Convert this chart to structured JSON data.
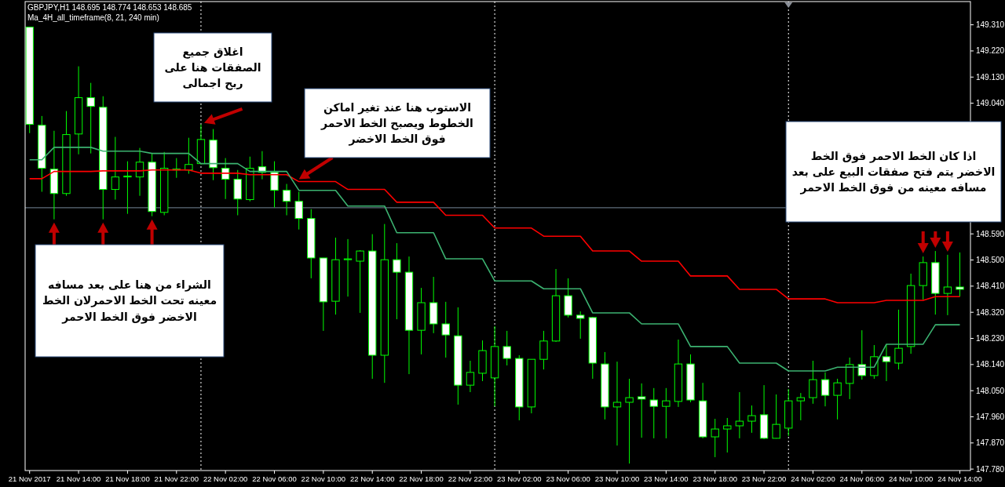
{
  "chart_data": {
    "type": "candlestick",
    "title": "GBPJPY,H1  148.695 148.774 148.653 148.685",
    "subtitle": "Ma_4H_all_timeframe(8, 21, 240 min)",
    "color": "#00ff00",
    "x": [
      "2017-11-21T10:00",
      "2017-11-21T11:00",
      "2017-11-21T12:00",
      "2017-11-21T13:00",
      "2017-11-21T14:00",
      "2017-11-21T15:00",
      "2017-11-21T16:00",
      "2017-11-21T17:00",
      "2017-11-21T18:00",
      "2017-11-21T19:00",
      "2017-11-21T20:00",
      "2017-11-21T21:00",
      "2017-11-21T22:00",
      "2017-11-21T23:00",
      "2017-11-22T00:00",
      "2017-11-22T01:00",
      "2017-11-22T02:00",
      "2017-11-22T03:00",
      "2017-11-22T04:00",
      "2017-11-22T05:00",
      "2017-11-22T06:00",
      "2017-11-22T07:00",
      "2017-11-22T08:00",
      "2017-11-22T09:00",
      "2017-11-22T10:00",
      "2017-11-22T11:00",
      "2017-11-22T12:00",
      "2017-11-22T13:00",
      "2017-11-22T14:00",
      "2017-11-22T15:00",
      "2017-11-22T16:00",
      "2017-11-22T17:00",
      "2017-11-22T18:00",
      "2017-11-22T19:00",
      "2017-11-22T20:00",
      "2017-11-22T21:00",
      "2017-11-22T22:00",
      "2017-11-22T23:00",
      "2017-11-23T00:00",
      "2017-11-23T01:00",
      "2017-11-23T02:00",
      "2017-11-23T03:00",
      "2017-11-23T04:00",
      "2017-11-23T05:00",
      "2017-11-23T06:00",
      "2017-11-23T07:00",
      "2017-11-23T08:00",
      "2017-11-23T09:00",
      "2017-11-23T10:00",
      "2017-11-23T11:00",
      "2017-11-23T12:00",
      "2017-11-23T13:00",
      "2017-11-23T14:00",
      "2017-11-23T15:00",
      "2017-11-23T16:00",
      "2017-11-23T17:00",
      "2017-11-23T18:00",
      "2017-11-23T19:00",
      "2017-11-23T20:00",
      "2017-11-23T21:00",
      "2017-11-23T22:00",
      "2017-11-23T23:00",
      "2017-11-24T00:00",
      "2017-11-24T01:00",
      "2017-11-24T02:00",
      "2017-11-24T03:00",
      "2017-11-24T04:00",
      "2017-11-24T05:00",
      "2017-11-24T06:00",
      "2017-11-24T07:00",
      "2017-11-24T08:00",
      "2017-11-24T09:00",
      "2017-11-24T10:00",
      "2017-11-24T11:00",
      "2017-11-24T12:00",
      "2017-11-24T13:00",
      "2017-11-24T14:00"
    ],
    "ohlc": [
      [
        149.302,
        149.302,
        148.937,
        148.967
      ],
      [
        148.964,
        148.996,
        148.735,
        148.816
      ],
      [
        148.813,
        148.945,
        148.64,
        148.729
      ],
      [
        148.729,
        149.013,
        148.721,
        148.932
      ],
      [
        148.934,
        149.167,
        148.864,
        149.059
      ],
      [
        149.059,
        149.11,
        148.867,
        149.029
      ],
      [
        149.026,
        149.064,
        148.64,
        148.743
      ],
      [
        148.743,
        148.924,
        148.708,
        148.786
      ],
      [
        148.786,
        148.84,
        148.659,
        148.789
      ],
      [
        148.786,
        148.886,
        148.721,
        148.837
      ],
      [
        148.837,
        148.867,
        148.651,
        148.667
      ],
      [
        148.664,
        148.872,
        148.654,
        148.816
      ],
      [
        148.81,
        148.851,
        148.783,
        148.813
      ],
      [
        148.81,
        148.921,
        148.797,
        148.829
      ],
      [
        148.832,
        148.967,
        148.829,
        148.915
      ],
      [
        148.913,
        148.951,
        148.775,
        148.818
      ],
      [
        148.816,
        148.851,
        148.71,
        148.778
      ],
      [
        148.778,
        148.81,
        148.654,
        148.71
      ],
      [
        148.708,
        148.856,
        148.702,
        148.816
      ],
      [
        148.821,
        148.875,
        148.778,
        148.802
      ],
      [
        148.802,
        148.84,
        148.681,
        148.74
      ],
      [
        148.74,
        148.762,
        148.654,
        148.702
      ],
      [
        148.702,
        148.735,
        148.605,
        148.643
      ],
      [
        148.643,
        148.675,
        148.437,
        148.507
      ],
      [
        148.507,
        148.507,
        148.256,
        148.356
      ],
      [
        148.358,
        148.577,
        148.312,
        148.501
      ],
      [
        148.501,
        148.572,
        148.374,
        148.504
      ],
      [
        148.496,
        148.534,
        148.318,
        148.531
      ],
      [
        148.531,
        148.589,
        148.091,
        148.172
      ],
      [
        148.172,
        148.624,
        148.077,
        148.501
      ],
      [
        148.501,
        148.558,
        148.296,
        148.458
      ],
      [
        148.458,
        148.512,
        148.107,
        148.258
      ],
      [
        148.258,
        148.404,
        148.175,
        148.353
      ],
      [
        148.353,
        148.442,
        148.248,
        148.28
      ],
      [
        148.28,
        148.356,
        148.164,
        148.242
      ],
      [
        148.239,
        148.337,
        148.002,
        148.069
      ],
      [
        148.069,
        148.153,
        148.045,
        148.113
      ],
      [
        148.11,
        148.223,
        148.083,
        148.188
      ],
      [
        148.094,
        148.272,
        147.996,
        148.202
      ],
      [
        148.202,
        148.256,
        148.137,
        148.161
      ],
      [
        148.161,
        148.172,
        147.948,
        147.994
      ],
      [
        147.994,
        148.158,
        147.972,
        148.158
      ],
      [
        148.158,
        148.256,
        148.123,
        148.221
      ],
      [
        148.221,
        148.469,
        148.218,
        148.377
      ],
      [
        148.377,
        148.437,
        148.302,
        148.31
      ],
      [
        148.31,
        148.323,
        148.229,
        148.299
      ],
      [
        148.302,
        148.304,
        148.091,
        148.145
      ],
      [
        148.142,
        148.183,
        147.951,
        147.994
      ],
      [
        147.994,
        148.15,
        147.861,
        148.01
      ],
      [
        148.01,
        148.091,
        147.799,
        148.026
      ],
      [
        148.029,
        148.075,
        147.888,
        148.021
      ],
      [
        148.018,
        148.059,
        147.886,
        147.996
      ],
      [
        147.996,
        148.059,
        147.886,
        148.015
      ],
      [
        148.013,
        148.226,
        147.994,
        148.142
      ],
      [
        148.142,
        148.175,
        148.01,
        148.018
      ],
      [
        148.015,
        148.077,
        147.886,
        147.891
      ],
      [
        147.891,
        147.953,
        147.821,
        147.918
      ],
      [
        147.918,
        147.956,
        147.837,
        147.929
      ],
      [
        147.929,
        148.045,
        147.886,
        147.945
      ],
      [
        147.945,
        147.999,
        147.905,
        147.964
      ],
      [
        147.967,
        148.069,
        147.883,
        147.886
      ],
      [
        147.886,
        148.037,
        147.885,
        147.934
      ],
      [
        147.921,
        148.056,
        147.894,
        148.015
      ],
      [
        148.015,
        148.042,
        147.948,
        148.026
      ],
      [
        148.026,
        148.153,
        148.005,
        148.088
      ],
      [
        148.088,
        148.113,
        147.996,
        148.034
      ],
      [
        148.034,
        148.091,
        147.951,
        148.077
      ],
      [
        148.075,
        148.164,
        148.021,
        148.14
      ],
      [
        148.14,
        148.258,
        148.088,
        148.102
      ],
      [
        148.102,
        148.207,
        148.091,
        148.167
      ],
      [
        148.167,
        148.21,
        148.083,
        148.15
      ],
      [
        148.145,
        148.329,
        148.123,
        148.196
      ],
      [
        148.202,
        148.453,
        148.177,
        148.412
      ],
      [
        148.412,
        148.512,
        148.364,
        148.491
      ],
      [
        148.491,
        148.531,
        148.312,
        148.385
      ],
      [
        148.385,
        148.518,
        148.31,
        148.407
      ],
      [
        148.407,
        148.526,
        148.374,
        148.399
      ]
    ],
    "series": [
      {
        "type": "line",
        "color": "#ff0000",
        "values": [
          148.78,
          148.78,
          148.805,
          148.805,
          148.805,
          148.805,
          148.807,
          148.807,
          148.807,
          148.807,
          148.81,
          148.81,
          148.81,
          148.81,
          148.799,
          148.799,
          148.799,
          148.799,
          148.794,
          148.794,
          148.794,
          148.794,
          148.77,
          148.77,
          148.77,
          148.77,
          148.743,
          148.743,
          148.743,
          148.743,
          148.699,
          148.699,
          148.699,
          148.699,
          148.654,
          148.654,
          148.654,
          148.654,
          148.61,
          148.61,
          148.61,
          148.61,
          148.582,
          148.582,
          148.582,
          148.582,
          148.531,
          148.531,
          148.531,
          148.531,
          148.496,
          148.496,
          148.496,
          148.496,
          148.445,
          148.445,
          148.445,
          148.445,
          148.399,
          148.399,
          148.399,
          148.399,
          148.366,
          148.366,
          148.366,
          148.366,
          148.353,
          148.353,
          148.353,
          148.353,
          148.361,
          148.361,
          148.361,
          148.361,
          148.374,
          148.374,
          148.374
        ]
      },
      {
        "type": "line",
        "color": "#3cb371",
        "values": [
          148.845,
          148.845,
          148.888,
          148.888,
          148.888,
          148.888,
          148.875,
          148.875,
          148.875,
          148.875,
          148.867,
          148.867,
          148.867,
          148.867,
          148.832,
          148.832,
          148.832,
          148.832,
          148.805,
          148.805,
          148.805,
          148.805,
          148.74,
          148.74,
          148.74,
          148.74,
          148.686,
          148.686,
          148.686,
          148.686,
          148.594,
          148.594,
          148.594,
          148.594,
          148.504,
          148.504,
          148.504,
          148.504,
          148.428,
          148.428,
          148.428,
          148.428,
          148.401,
          148.401,
          148.401,
          148.401,
          148.318,
          148.318,
          148.318,
          148.318,
          148.28,
          148.28,
          148.28,
          148.28,
          148.202,
          148.202,
          148.202,
          148.202,
          148.145,
          148.145,
          148.145,
          148.145,
          148.118,
          148.118,
          148.118,
          148.118,
          148.131,
          148.131,
          148.131,
          148.131,
          148.21,
          148.21,
          148.21,
          148.21,
          148.277,
          148.277,
          148.277
        ]
      }
    ],
    "xlim": [
      "2017-11-21T09:38",
      "2017-11-24T14:52"
    ],
    "xticks": [
      {
        "value": "2017-11-21T10:00",
        "label": "21 Nov 2017"
      },
      {
        "value": "2017-11-21T14:00",
        "label": "21 Nov 14:00"
      },
      {
        "value": "2017-11-21T18:00",
        "label": "21 Nov 18:00"
      },
      {
        "value": "2017-11-21T22:00",
        "label": "21 Nov 22:00"
      },
      {
        "value": "2017-11-22T02:00",
        "label": "22 Nov 02:00"
      },
      {
        "value": "2017-11-22T06:00",
        "label": "22 Nov 06:00"
      },
      {
        "value": "2017-11-22T10:00",
        "label": "22 Nov 10:00"
      },
      {
        "value": "2017-11-22T14:00",
        "label": "22 Nov 14:00"
      },
      {
        "value": "2017-11-22T18:00",
        "label": "22 Nov 18:00"
      },
      {
        "value": "2017-11-22T22:00",
        "label": "22 Nov 22:00"
      },
      {
        "value": "2017-11-23T02:00",
        "label": "23 Nov 02:00"
      },
      {
        "value": "2017-11-23T06:00",
        "label": "23 Nov 06:00"
      },
      {
        "value": "2017-11-23T10:00",
        "label": "23 Nov 10:00"
      },
      {
        "value": "2017-11-23T14:00",
        "label": "23 Nov 14:00"
      },
      {
        "value": "2017-11-23T18:00",
        "label": "23 Nov 18:00"
      },
      {
        "value": "2017-11-23T22:00",
        "label": "23 Nov 22:00"
      },
      {
        "value": "2017-11-24T02:00",
        "label": "24 Nov 02:00"
      },
      {
        "value": "2017-11-24T06:00",
        "label": "24 Nov 06:00"
      },
      {
        "value": "2017-11-24T10:00",
        "label": "24 Nov 10:00"
      },
      {
        "value": "2017-11-24T14:00",
        "label": "24 Nov 14:00"
      }
    ],
    "ylim": [
      147.775,
      149.39
    ],
    "yticks": [
      {
        "value": 149.31,
        "label": "149.310"
      },
      {
        "value": 149.22,
        "label": "149.220"
      },
      {
        "value": 149.13,
        "label": "149.130"
      },
      {
        "value": 149.04,
        "label": "149.040"
      },
      {
        "value": 148.59,
        "label": "148.590"
      },
      {
        "value": 148.5,
        "label": "148.500"
      },
      {
        "value": 148.41,
        "label": "148.410"
      },
      {
        "value": 148.32,
        "label": "148.320"
      },
      {
        "value": 148.23,
        "label": "148.230"
      },
      {
        "value": 148.14,
        "label": "148.140"
      },
      {
        "value": 148.05,
        "label": "148.050"
      },
      {
        "value": 147.96,
        "label": "147.960"
      },
      {
        "value": 147.87,
        "label": "147.870"
      },
      {
        "value": 147.78,
        "label": "147.780"
      }
    ],
    "ref_lines": [
      {
        "axis": "x",
        "value": "2017-11-22T00:00",
        "color": "#ffffff",
        "line_style": "dotted"
      },
      {
        "axis": "x",
        "value": "2017-11-23T00:00",
        "color": "#ffffff",
        "line_style": "dotted"
      },
      {
        "axis": "x",
        "value": "2017-11-24T00:00",
        "color": "#ffffff",
        "line_style": "dotted"
      },
      {
        "axis": "y",
        "value": 148.68,
        "color": "#778899",
        "line_style": "solid"
      }
    ],
    "annotations": [
      "اغلاق جميع الصفقات هنا على ربح اجمالى",
      "الاستوب هنا عند تغير اماكن الخطوط ويصبح الخط الاحمر فوق الخط الاخضر",
      "اذا كان الخط الاحمر فوق الخط الاخضر يتم فتح صفقات البيع على بعد مسافه معينه من فوق الخط الاحمر",
      "الشراء من هنا على بعد مسافه معينه تحت الخط الاحمرلان الخط الاخضر فوق الخط الاحمر"
    ]
  }
}
